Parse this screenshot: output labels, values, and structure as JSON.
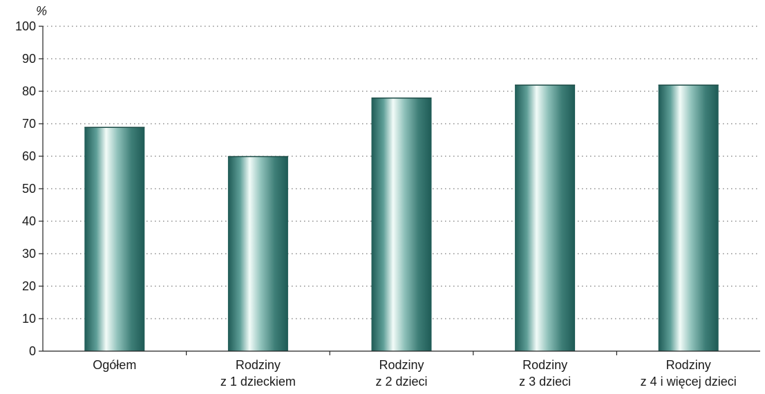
{
  "chart_data": {
    "type": "bar",
    "unit_label": "%",
    "categories": [
      [
        "Ogółem"
      ],
      [
        "Rodziny",
        "z 1 dzieckiem"
      ],
      [
        "Rodziny",
        "z 2 dzieci"
      ],
      [
        "Rodziny",
        "z 3 dzieci"
      ],
      [
        "Rodziny",
        "z 4 i więcej dzieci"
      ]
    ],
    "values": [
      69,
      60,
      78,
      82,
      82
    ],
    "ylim": [
      0,
      100
    ],
    "yticks": [
      0,
      10,
      20,
      30,
      40,
      50,
      60,
      70,
      80,
      90,
      100
    ],
    "grid": true,
    "bar_colors": {
      "dark": "#1e5a55",
      "mid": "#5f9f98",
      "light": "#f2fbf8"
    }
  }
}
